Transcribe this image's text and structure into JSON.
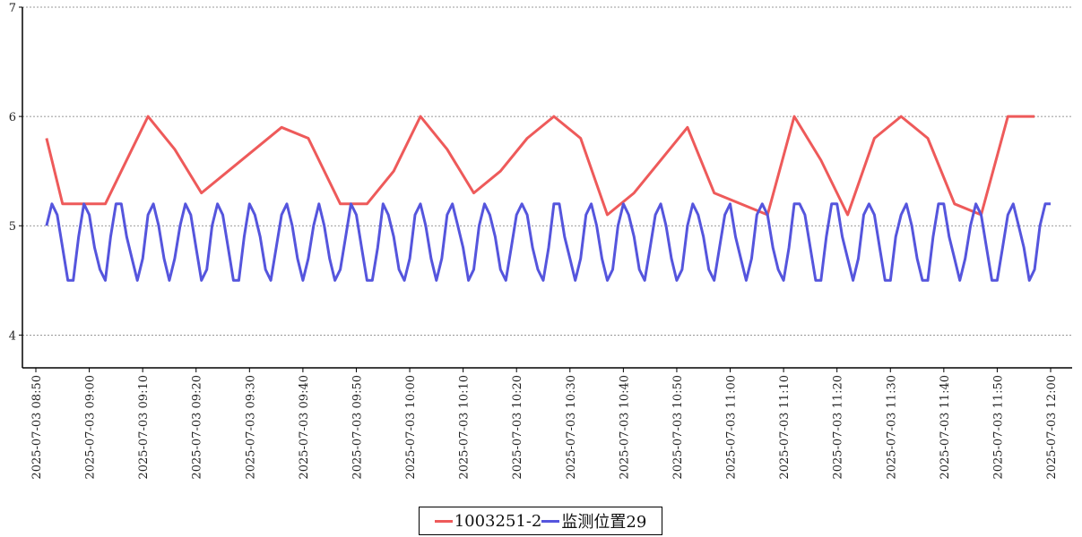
{
  "chart_data": {
    "type": "line",
    "title": "",
    "xlabel": "",
    "ylabel": "",
    "ylim": [
      3.7,
      7
    ],
    "yticks": [
      4,
      5,
      6,
      7
    ],
    "grid": "horizontal dotted",
    "legend_position": "bottom-center",
    "x_tick_labels": [
      "2025-07-03 08:50",
      "2025-07-03 09:00",
      "2025-07-03 09:10",
      "2025-07-03 09:20",
      "2025-07-03 09:30",
      "2025-07-03 09:40",
      "2025-07-03 09:50",
      "2025-07-03 10:00",
      "2025-07-03 10:10",
      "2025-07-03 10:20",
      "2025-07-03 10:30",
      "2025-07-03 10:40",
      "2025-07-03 10:50",
      "2025-07-03 11:00",
      "2025-07-03 11:10",
      "2025-07-03 11:20",
      "2025-07-03 11:30",
      "2025-07-03 11:40",
      "2025-07-03 11:50",
      "2025-07-03 12:00"
    ],
    "series": [
      {
        "name": "1003251-2",
        "color": "#ee5a5a",
        "points": [
          [
            "08:52",
            5.8
          ],
          [
            "08:55",
            5.2
          ],
          [
            "09:00",
            5.2
          ],
          [
            "09:03",
            5.2
          ],
          [
            "09:06",
            5.5
          ],
          [
            "09:11",
            6.0
          ],
          [
            "09:16",
            5.7
          ],
          [
            "09:21",
            5.3
          ],
          [
            "09:26",
            5.5
          ],
          [
            "09:36",
            5.9
          ],
          [
            "09:41",
            5.8
          ],
          [
            "09:47",
            5.2
          ],
          [
            "09:52",
            5.2
          ],
          [
            "09:57",
            5.5
          ],
          [
            "10:02",
            6.0
          ],
          [
            "10:07",
            5.7
          ],
          [
            "10:12",
            5.3
          ],
          [
            "10:17",
            5.5
          ],
          [
            "10:22",
            5.8
          ],
          [
            "10:27",
            6.0
          ],
          [
            "10:32",
            5.8
          ],
          [
            "10:37",
            5.1
          ],
          [
            "10:42",
            5.3
          ],
          [
            "10:52",
            5.9
          ],
          [
            "10:57",
            5.3
          ],
          [
            "11:07",
            5.1
          ],
          [
            "11:12",
            6.0
          ],
          [
            "11:17",
            5.6
          ],
          [
            "11:22",
            5.1
          ],
          [
            "11:27",
            5.8
          ],
          [
            "11:32",
            6.0
          ],
          [
            "11:37",
            5.8
          ],
          [
            "11:42",
            5.2
          ],
          [
            "11:47",
            5.1
          ],
          [
            "11:52",
            6.0
          ],
          [
            "11:57",
            6.0
          ]
        ]
      },
      {
        "name": "监测位置29",
        "color": "#5555dd",
        "points": [
          [
            "08:52",
            5.0
          ],
          [
            "08:53",
            5.2
          ],
          [
            "08:54",
            5.1
          ],
          [
            "08:55",
            4.8
          ],
          [
            "08:56",
            4.5
          ],
          [
            "08:57",
            4.5
          ],
          [
            "08:58",
            4.9
          ],
          [
            "08:59",
            5.2
          ],
          [
            "09:00",
            5.1
          ],
          [
            "09:01",
            4.8
          ],
          [
            "09:02",
            4.6
          ],
          [
            "09:03",
            4.5
          ],
          [
            "09:04",
            4.9
          ],
          [
            "09:05",
            5.2
          ],
          [
            "09:06",
            5.2
          ],
          [
            "09:07",
            4.9
          ],
          [
            "09:08",
            4.7
          ],
          [
            "09:09",
            4.5
          ],
          [
            "09:10",
            4.7
          ],
          [
            "09:11",
            5.1
          ],
          [
            "09:12",
            5.2
          ],
          [
            "09:13",
            5.0
          ],
          [
            "09:14",
            4.7
          ],
          [
            "09:15",
            4.5
          ],
          [
            "09:16",
            4.7
          ],
          [
            "09:17",
            5.0
          ],
          [
            "09:18",
            5.2
          ],
          [
            "09:19",
            5.1
          ],
          [
            "09:20",
            4.8
          ],
          [
            "09:21",
            4.5
          ],
          [
            "09:22",
            4.6
          ],
          [
            "09:23",
            5.0
          ],
          [
            "09:24",
            5.2
          ],
          [
            "09:25",
            5.1
          ],
          [
            "09:26",
            4.8
          ],
          [
            "09:27",
            4.5
          ],
          [
            "09:28",
            4.5
          ],
          [
            "09:29",
            4.9
          ],
          [
            "09:30",
            5.2
          ],
          [
            "09:31",
            5.1
          ],
          [
            "09:32",
            4.9
          ],
          [
            "09:33",
            4.6
          ],
          [
            "09:34",
            4.5
          ],
          [
            "09:35",
            4.8
          ],
          [
            "09:36",
            5.1
          ],
          [
            "09:37",
            5.2
          ],
          [
            "09:38",
            5.0
          ],
          [
            "09:39",
            4.7
          ],
          [
            "09:40",
            4.5
          ],
          [
            "09:41",
            4.7
          ],
          [
            "09:42",
            5.0
          ],
          [
            "09:43",
            5.2
          ],
          [
            "09:44",
            5.0
          ],
          [
            "09:45",
            4.7
          ],
          [
            "09:46",
            4.5
          ],
          [
            "09:47",
            4.6
          ],
          [
            "09:48",
            4.9
          ],
          [
            "09:49",
            5.2
          ],
          [
            "09:50",
            5.1
          ],
          [
            "09:51",
            4.8
          ],
          [
            "09:52",
            4.5
          ],
          [
            "09:53",
            4.5
          ],
          [
            "09:54",
            4.8
          ],
          [
            "09:55",
            5.2
          ],
          [
            "09:56",
            5.1
          ],
          [
            "09:57",
            4.9
          ],
          [
            "09:58",
            4.6
          ],
          [
            "09:59",
            4.5
          ],
          [
            "10:00",
            4.7
          ],
          [
            "10:01",
            5.1
          ],
          [
            "10:02",
            5.2
          ],
          [
            "10:03",
            5.0
          ],
          [
            "10:04",
            4.7
          ],
          [
            "10:05",
            4.5
          ],
          [
            "10:06",
            4.7
          ],
          [
            "10:07",
            5.1
          ],
          [
            "10:08",
            5.2
          ],
          [
            "10:09",
            5.0
          ],
          [
            "10:10",
            4.8
          ],
          [
            "10:11",
            4.5
          ],
          [
            "10:12",
            4.6
          ],
          [
            "10:13",
            5.0
          ],
          [
            "10:14",
            5.2
          ],
          [
            "10:15",
            5.1
          ],
          [
            "10:16",
            4.9
          ],
          [
            "10:17",
            4.6
          ],
          [
            "10:18",
            4.5
          ],
          [
            "10:19",
            4.8
          ],
          [
            "10:20",
            5.1
          ],
          [
            "10:21",
            5.2
          ],
          [
            "10:22",
            5.1
          ],
          [
            "10:23",
            4.8
          ],
          [
            "10:24",
            4.6
          ],
          [
            "10:25",
            4.5
          ],
          [
            "10:26",
            4.8
          ],
          [
            "10:27",
            5.2
          ],
          [
            "10:28",
            5.2
          ],
          [
            "10:29",
            4.9
          ],
          [
            "10:30",
            4.7
          ],
          [
            "10:31",
            4.5
          ],
          [
            "10:32",
            4.7
          ],
          [
            "10:33",
            5.1
          ],
          [
            "10:34",
            5.2
          ],
          [
            "10:35",
            5.0
          ],
          [
            "10:36",
            4.7
          ],
          [
            "10:37",
            4.5
          ],
          [
            "10:38",
            4.6
          ],
          [
            "10:39",
            5.0
          ],
          [
            "10:40",
            5.2
          ],
          [
            "10:41",
            5.1
          ],
          [
            "10:42",
            4.9
          ],
          [
            "10:43",
            4.6
          ],
          [
            "10:44",
            4.5
          ],
          [
            "10:45",
            4.8
          ],
          [
            "10:46",
            5.1
          ],
          [
            "10:47",
            5.2
          ],
          [
            "10:48",
            5.0
          ],
          [
            "10:49",
            4.7
          ],
          [
            "10:50",
            4.5
          ],
          [
            "10:51",
            4.6
          ],
          [
            "10:52",
            5.0
          ],
          [
            "10:53",
            5.2
          ],
          [
            "10:54",
            5.1
          ],
          [
            "10:55",
            4.9
          ],
          [
            "10:56",
            4.6
          ],
          [
            "10:57",
            4.5
          ],
          [
            "10:58",
            4.8
          ],
          [
            "10:59",
            5.1
          ],
          [
            "11:00",
            5.2
          ],
          [
            "11:01",
            4.9
          ],
          [
            "11:02",
            4.7
          ],
          [
            "11:03",
            4.5
          ],
          [
            "11:04",
            4.7
          ],
          [
            "11:05",
            5.1
          ],
          [
            "11:06",
            5.2
          ],
          [
            "11:07",
            5.1
          ],
          [
            "11:08",
            4.8
          ],
          [
            "11:09",
            4.6
          ],
          [
            "11:10",
            4.5
          ],
          [
            "11:11",
            4.8
          ],
          [
            "11:12",
            5.2
          ],
          [
            "11:13",
            5.2
          ],
          [
            "11:14",
            5.1
          ],
          [
            "11:15",
            4.8
          ],
          [
            "11:16",
            4.5
          ],
          [
            "11:17",
            4.5
          ],
          [
            "11:18",
            4.9
          ],
          [
            "11:19",
            5.2
          ],
          [
            "11:20",
            5.2
          ],
          [
            "11:21",
            4.9
          ],
          [
            "11:22",
            4.7
          ],
          [
            "11:23",
            4.5
          ],
          [
            "11:24",
            4.7
          ],
          [
            "11:25",
            5.1
          ],
          [
            "11:26",
            5.2
          ],
          [
            "11:27",
            5.1
          ],
          [
            "11:28",
            4.8
          ],
          [
            "11:29",
            4.5
          ],
          [
            "11:30",
            4.5
          ],
          [
            "11:31",
            4.9
          ],
          [
            "11:32",
            5.1
          ],
          [
            "11:33",
            5.2
          ],
          [
            "11:34",
            5.0
          ],
          [
            "11:35",
            4.7
          ],
          [
            "11:36",
            4.5
          ],
          [
            "11:37",
            4.5
          ],
          [
            "11:38",
            4.9
          ],
          [
            "11:39",
            5.2
          ],
          [
            "11:40",
            5.2
          ],
          [
            "11:41",
            4.9
          ],
          [
            "11:42",
            4.7
          ],
          [
            "11:43",
            4.5
          ],
          [
            "11:44",
            4.7
          ],
          [
            "11:45",
            5.0
          ],
          [
            "11:46",
            5.2
          ],
          [
            "11:47",
            5.1
          ],
          [
            "11:48",
            4.8
          ],
          [
            "11:49",
            4.5
          ],
          [
            "11:50",
            4.5
          ],
          [
            "11:51",
            4.8
          ],
          [
            "11:52",
            5.1
          ],
          [
            "11:53",
            5.2
          ],
          [
            "11:54",
            5.0
          ],
          [
            "11:55",
            4.8
          ],
          [
            "11:56",
            4.5
          ],
          [
            "11:57",
            4.6
          ],
          [
            "11:58",
            5.0
          ],
          [
            "11:59",
            5.2
          ],
          [
            "12:00",
            5.2
          ]
        ]
      }
    ]
  }
}
